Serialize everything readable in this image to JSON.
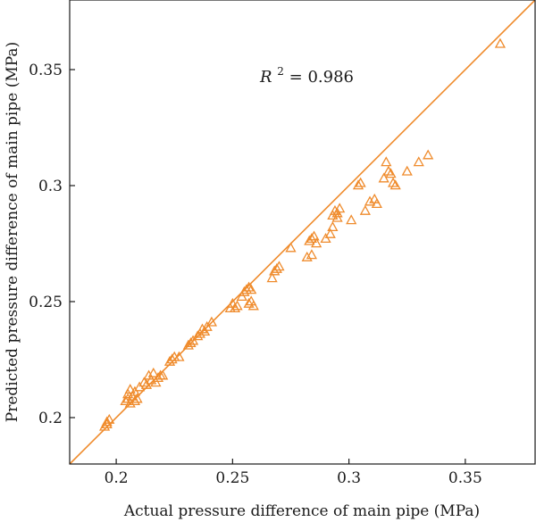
{
  "chart_data": {
    "type": "scatter",
    "title": "",
    "xlabel": "Actual pressure difference of main pipe (MPa)",
    "ylabel": "Predicted pressure difference of main pipe (MPa)",
    "xlim": [
      0.18,
      0.38
    ],
    "ylim": [
      0.18,
      0.38
    ],
    "xticks": [
      "0.2",
      "0.25",
      "0.3",
      "0.35"
    ],
    "yticks": [
      "0.2",
      "0.25",
      "0.3",
      "0.35"
    ],
    "xtick_values": [
      0.2,
      0.25,
      0.3,
      0.35
    ],
    "ytick_values": [
      0.2,
      0.25,
      0.3,
      0.35
    ],
    "grid": false,
    "legend": "none",
    "reference_line": "y = x",
    "color": "#ef8b2c",
    "marker": "open-triangle",
    "annotation": {
      "prefix": "R",
      "superscript": "2",
      "value": " = 0.986"
    },
    "points": [
      [
        0.195,
        0.196
      ],
      [
        0.196,
        0.197
      ],
      [
        0.196,
        0.198
      ],
      [
        0.197,
        0.199
      ],
      [
        0.204,
        0.207
      ],
      [
        0.205,
        0.208
      ],
      [
        0.205,
        0.21
      ],
      [
        0.206,
        0.206
      ],
      [
        0.206,
        0.212
      ],
      [
        0.207,
        0.209
      ],
      [
        0.208,
        0.207
      ],
      [
        0.208,
        0.211
      ],
      [
        0.209,
        0.208
      ],
      [
        0.21,
        0.213
      ],
      [
        0.212,
        0.215
      ],
      [
        0.213,
        0.214
      ],
      [
        0.214,
        0.218
      ],
      [
        0.215,
        0.216
      ],
      [
        0.216,
        0.219
      ],
      [
        0.217,
        0.215
      ],
      [
        0.218,
        0.217
      ],
      [
        0.219,
        0.218
      ],
      [
        0.22,
        0.218
      ],
      [
        0.223,
        0.224
      ],
      [
        0.224,
        0.225
      ],
      [
        0.225,
        0.226
      ],
      [
        0.227,
        0.226
      ],
      [
        0.231,
        0.231
      ],
      [
        0.232,
        0.232
      ],
      [
        0.233,
        0.233
      ],
      [
        0.235,
        0.235
      ],
      [
        0.236,
        0.236
      ],
      [
        0.237,
        0.238
      ],
      [
        0.238,
        0.237
      ],
      [
        0.239,
        0.239
      ],
      [
        0.241,
        0.241
      ],
      [
        0.249,
        0.247
      ],
      [
        0.25,
        0.249
      ],
      [
        0.251,
        0.247
      ],
      [
        0.252,
        0.248
      ],
      [
        0.254,
        0.252
      ],
      [
        0.255,
        0.254
      ],
      [
        0.256,
        0.255
      ],
      [
        0.257,
        0.256
      ],
      [
        0.258,
        0.255
      ],
      [
        0.257,
        0.249
      ],
      [
        0.258,
        0.25
      ],
      [
        0.259,
        0.248
      ],
      [
        0.267,
        0.26
      ],
      [
        0.268,
        0.263
      ],
      [
        0.269,
        0.264
      ],
      [
        0.27,
        0.265
      ],
      [
        0.275,
        0.273
      ],
      [
        0.282,
        0.269
      ],
      [
        0.283,
        0.276
      ],
      [
        0.284,
        0.27
      ],
      [
        0.284,
        0.277
      ],
      [
        0.285,
        0.278
      ],
      [
        0.286,
        0.275
      ],
      [
        0.29,
        0.277
      ],
      [
        0.292,
        0.279
      ],
      [
        0.293,
        0.282
      ],
      [
        0.293,
        0.287
      ],
      [
        0.294,
        0.289
      ],
      [
        0.295,
        0.286
      ],
      [
        0.295,
        0.288
      ],
      [
        0.296,
        0.29
      ],
      [
        0.301,
        0.285
      ],
      [
        0.304,
        0.3
      ],
      [
        0.305,
        0.301
      ],
      [
        0.307,
        0.289
      ],
      [
        0.309,
        0.293
      ],
      [
        0.311,
        0.294
      ],
      [
        0.312,
        0.292
      ],
      [
        0.315,
        0.303
      ],
      [
        0.316,
        0.31
      ],
      [
        0.317,
        0.306
      ],
      [
        0.318,
        0.305
      ],
      [
        0.319,
        0.301
      ],
      [
        0.32,
        0.3
      ],
      [
        0.325,
        0.306
      ],
      [
        0.33,
        0.31
      ],
      [
        0.334,
        0.313
      ],
      [
        0.365,
        0.361
      ]
    ]
  }
}
